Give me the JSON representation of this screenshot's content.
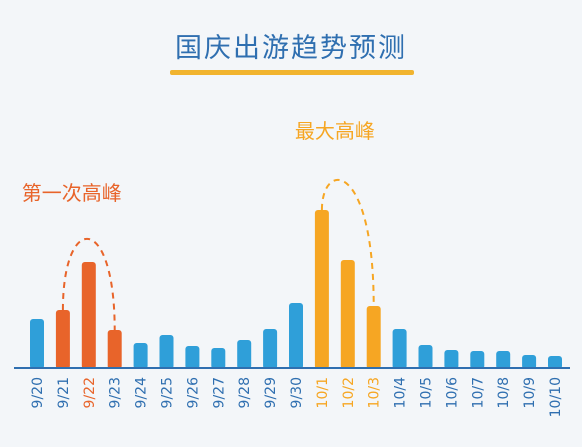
{
  "title": "国庆出游趋势预测",
  "colors": {
    "normal": "#2f9fd9",
    "first_peak": "#e8642a",
    "main_peak": "#f6a623",
    "title": "#2f6fb0",
    "underline": "#f1b42f",
    "axis": "#2f6fb0"
  },
  "chart_data": {
    "type": "bar",
    "title": "国庆出游趋势预测",
    "categories": [
      "9/20",
      "9/21",
      "9/22",
      "9/23",
      "9/24",
      "9/25",
      "9/26",
      "9/27",
      "9/28",
      "9/29",
      "9/30",
      "10/1",
      "10/2",
      "10/3",
      "10/4",
      "10/5",
      "10/6",
      "10/7",
      "10/8",
      "10/9",
      "10/10"
    ],
    "values": [
      48,
      57,
      105,
      37,
      24,
      32,
      21,
      19,
      27,
      38,
      64,
      157,
      107,
      61,
      38,
      22,
      17,
      16,
      16,
      12,
      11
    ],
    "highlight": {
      "first_peak": [
        "9/21",
        "9/22",
        "9/23"
      ],
      "main_peak": [
        "10/1",
        "10/2",
        "10/3"
      ]
    },
    "annotations": [
      {
        "text": "第一次高峰",
        "target": "9/22"
      },
      {
        "text": "最大高峰",
        "target": "10/1"
      }
    ]
  }
}
